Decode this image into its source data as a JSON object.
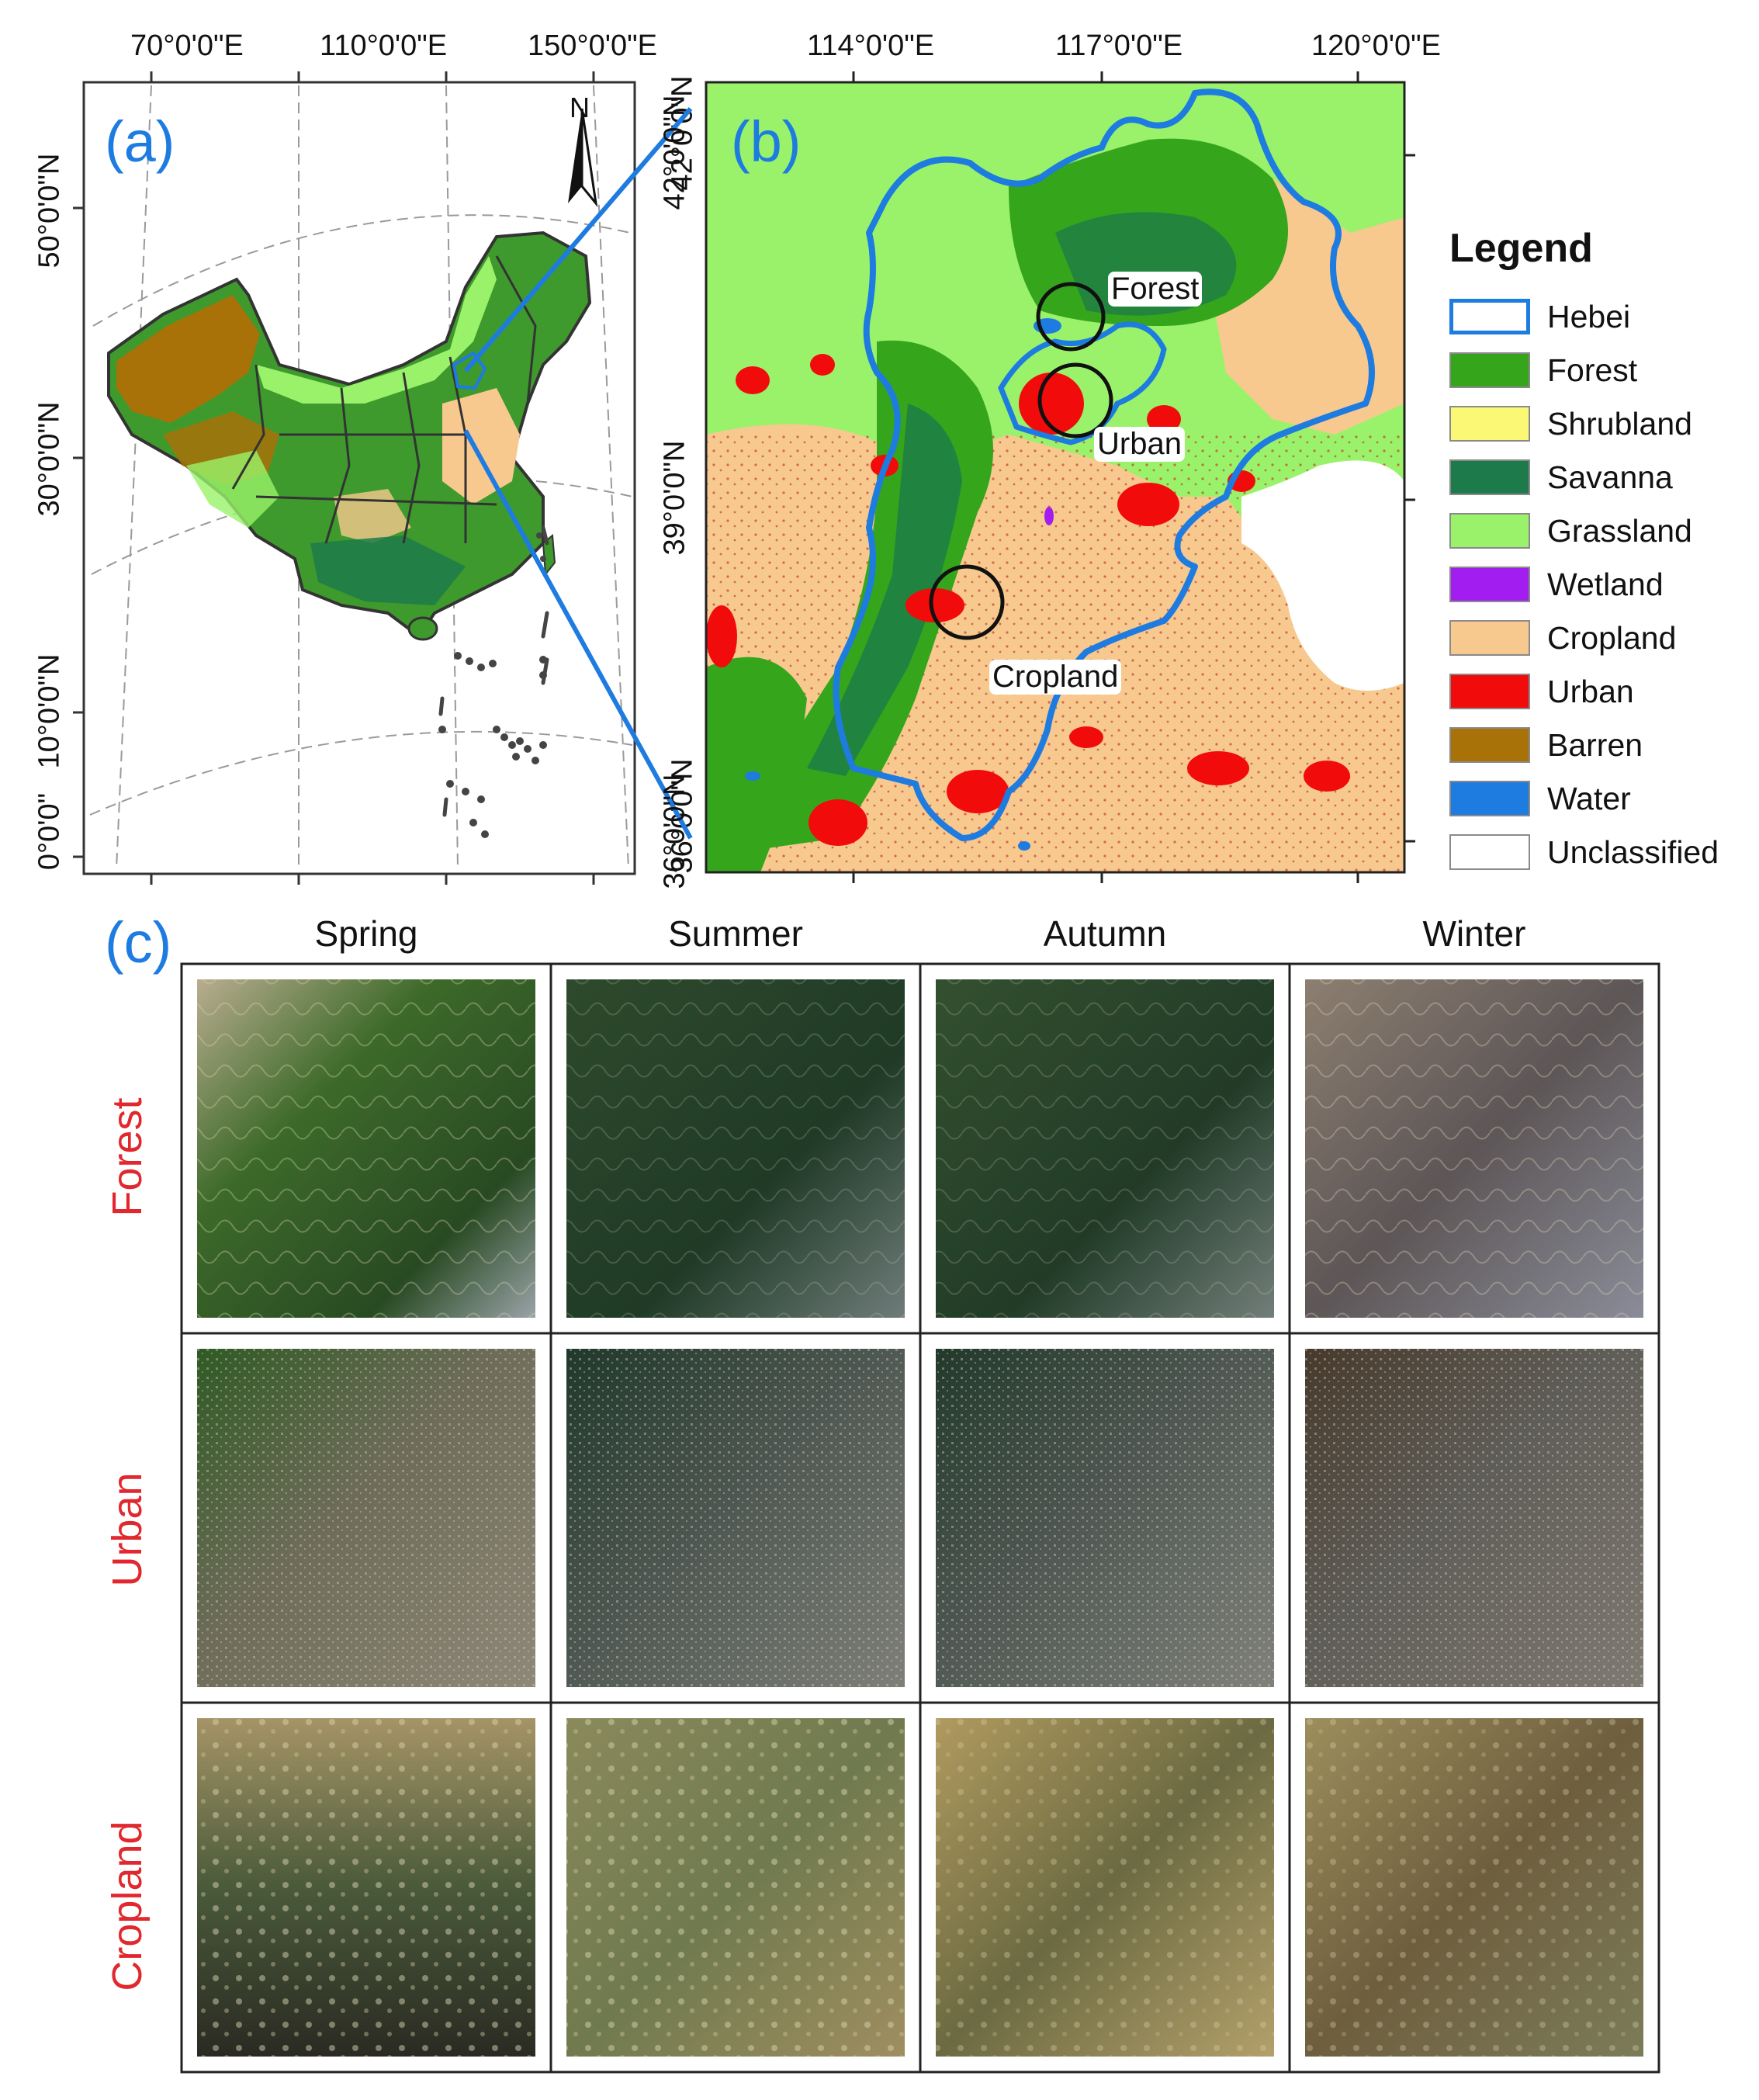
{
  "panel_a": {
    "label": "(a)",
    "north_label": "N",
    "top_ticks": [
      "70°0'0\"E",
      "110°0'0\"E",
      "150°0'0\"E"
    ],
    "left_ticks": [
      "50°0'0\"N",
      "30°0'0\"N",
      "10°0'0\"N",
      "0°0'0\""
    ],
    "right_top_tick": "42°0'0\"N",
    "right_bottom_tick": "36°0'0\"N"
  },
  "panel_b": {
    "label": "(b)",
    "top_ticks": [
      "114°0'0\"E",
      "117°0'0\"E",
      "120°0'0\"E"
    ],
    "left_ticks": [
      "42°0'0\"N",
      "39°0'0\"N",
      "36°0'0\"N"
    ],
    "sites": [
      "Forest",
      "Urban",
      "Cropland"
    ]
  },
  "legend": {
    "title": "Legend",
    "items": [
      {
        "label": "Hebei",
        "color": "#ffffff",
        "border": "#1e7be0"
      },
      {
        "label": "Forest",
        "color": "#35a51c"
      },
      {
        "label": "Shrubland",
        "color": "#fbf875"
      },
      {
        "label": "Savanna",
        "color": "#1d7a4a"
      },
      {
        "label": "Grassland",
        "color": "#9af26a"
      },
      {
        "label": "Wetland",
        "color": "#a21ef0"
      },
      {
        "label": "Cropland",
        "color": "#f7c98f"
      },
      {
        "label": "Urban",
        "color": "#f20b0b"
      },
      {
        "label": "Barren",
        "color": "#a87209"
      },
      {
        "label": "Water",
        "color": "#1e7be0"
      },
      {
        "label": "Unclassified",
        "color": "#ffffff"
      }
    ]
  },
  "panel_c": {
    "label": "(c)",
    "seasons": [
      "Spring",
      "Summer",
      "Autumn",
      "Winter"
    ],
    "rows": [
      "Forest",
      "Urban",
      "Cropland"
    ]
  },
  "colors": {
    "accent_blue": "#1e7be0",
    "row_label_red": "#e0282e"
  }
}
